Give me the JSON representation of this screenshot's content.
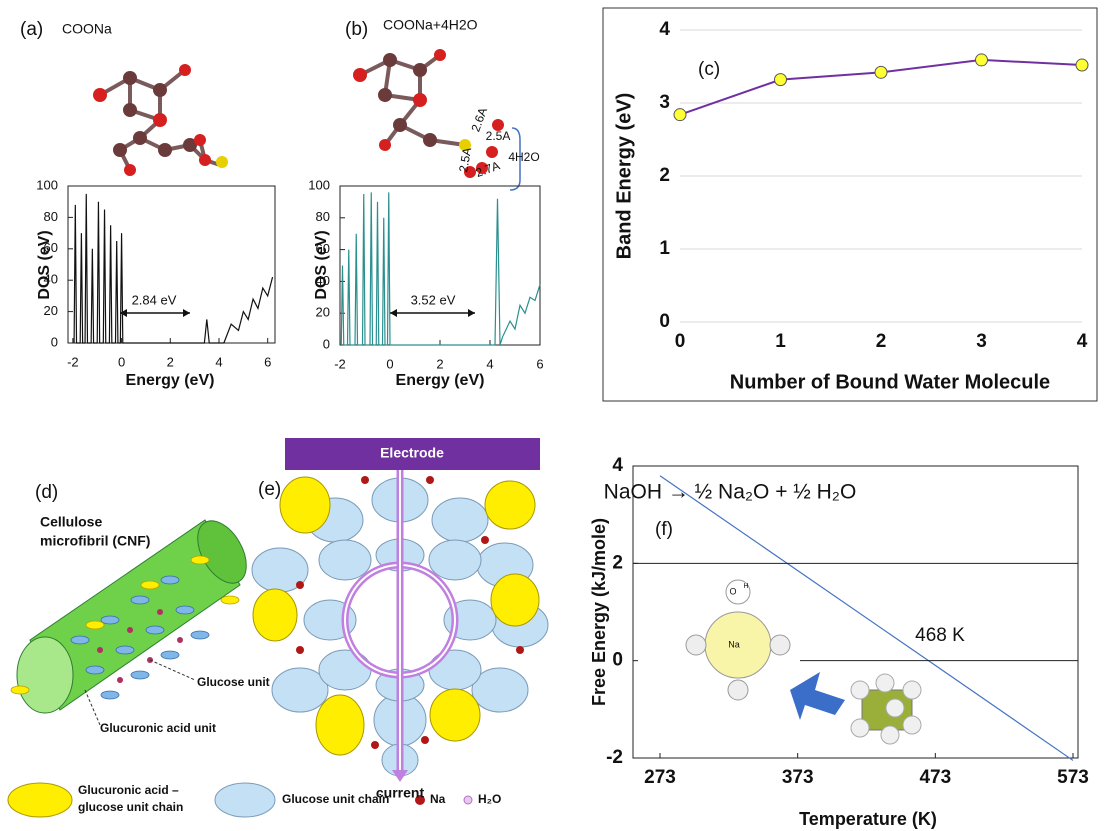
{
  "chart_data": [
    {
      "type": "line",
      "panel": "(a)",
      "title": "COONa",
      "x_label": "Energy (eV)",
      "y_label": "DOS (eV)",
      "xlim": [
        -2.2,
        6.3
      ],
      "ylim": [
        0,
        100
      ],
      "xticks": [
        -2,
        0,
        2,
        4,
        6
      ],
      "yticks": [
        0,
        20,
        40,
        60,
        80,
        100
      ],
      "annotations": [
        "2.84 eV"
      ],
      "series": [
        {
          "color": "#111111",
          "x": [
            -1.95,
            -1.9,
            -1.85,
            -1.7,
            -1.65,
            -1.6,
            -1.5,
            -1.45,
            -1.4,
            -1.25,
            -1.2,
            -1.15,
            -1.0,
            -0.95,
            -0.9,
            -0.75,
            -0.7,
            -0.65,
            -0.5,
            -0.45,
            -0.4,
            -0.25,
            -0.2,
            -0.15,
            -0.05,
            0,
            0.05,
            3.4,
            3.5,
            3.6,
            4.2,
            4.5,
            4.8,
            5.0,
            5.2,
            5.4,
            5.6,
            5.8,
            6.0,
            6.2
          ],
          "values": [
            0,
            88,
            0,
            0,
            70,
            0,
            0,
            95,
            0,
            0,
            60,
            0,
            0,
            90,
            0,
            0,
            85,
            0,
            0,
            75,
            0,
            0,
            65,
            0,
            0,
            70,
            0,
            0,
            15,
            0,
            0,
            12,
            8,
            20,
            15,
            28,
            22,
            35,
            30,
            42
          ]
        }
      ]
    },
    {
      "type": "line",
      "panel": "(b)",
      "title": "COONa+4H2O",
      "x_label": "Energy (eV)",
      "y_label": "DOS (eV)",
      "xlim": [
        -2,
        6
      ],
      "ylim": [
        0,
        100
      ],
      "xticks": [
        -2,
        0,
        2,
        4,
        6
      ],
      "yticks": [
        0,
        20,
        40,
        60,
        80,
        100
      ],
      "annotations": [
        "3.52 eV",
        "2.6A",
        "2.5A",
        "2.5A",
        "2.7A",
        "4H2O"
      ],
      "series": [
        {
          "color": "#2a8f8f",
          "x": [
            -1.95,
            -1.9,
            -1.85,
            -1.7,
            -1.65,
            -1.6,
            -1.4,
            -1.35,
            -1.3,
            -1.1,
            -1.05,
            -1.0,
            -0.8,
            -0.75,
            -0.7,
            -0.55,
            -0.5,
            -0.45,
            -0.3,
            -0.25,
            -0.2,
            -0.1,
            -0.05,
            0,
            4.2,
            4.3,
            4.4,
            4.5,
            4.8,
            5.0,
            5.2,
            5.4,
            5.6,
            5.8,
            6.0
          ],
          "values": [
            0,
            50,
            0,
            0,
            60,
            0,
            0,
            70,
            0,
            0,
            95,
            0,
            0,
            96,
            0,
            0,
            90,
            0,
            0,
            80,
            0,
            0,
            96,
            0,
            0,
            92,
            0,
            5,
            15,
            10,
            25,
            20,
            30,
            28,
            38
          ]
        }
      ]
    },
    {
      "type": "line",
      "panel": "(c)",
      "x_label": "Number of Bound Water Molecule",
      "y_label": "Band Energy (eV)",
      "xlim": [
        0,
        4
      ],
      "ylim": [
        0,
        4
      ],
      "xticks": [
        0,
        1,
        2,
        3,
        4
      ],
      "yticks": [
        0,
        1,
        2,
        3,
        4
      ],
      "grid": true,
      "series": [
        {
          "color": "#7030a0",
          "marker_color": "#ffff33",
          "x": [
            0,
            1,
            2,
            3,
            4
          ],
          "values": [
            2.84,
            3.32,
            3.42,
            3.59,
            3.52
          ]
        }
      ]
    },
    {
      "type": "line",
      "panel": "(f)",
      "x_label": "Temperature (K)",
      "y_label": "Free Energy (kJ/mole)",
      "xlim": [
        273,
        573
      ],
      "ylim": [
        -2,
        4
      ],
      "xticks": [
        273,
        373,
        473,
        573
      ],
      "yticks": [
        -2,
        0,
        2,
        4
      ],
      "annotations": [
        "NaOH → ½ Na₂O +  ½ H₂O",
        "468 K",
        "O",
        "H",
        "Na"
      ],
      "series": [
        {
          "color": "#4472c4",
          "x": [
            273,
            468,
            573
          ],
          "values": [
            3.8,
            0,
            -2.05
          ]
        }
      ]
    }
  ],
  "diagrams": {
    "d": {
      "panel": "(d)",
      "title": [
        "Cellulose",
        "microfibril (CNF)"
      ],
      "labels": [
        "Glucose unit",
        "Glucuronic acid unit"
      ]
    },
    "e": {
      "panel": "(e)",
      "electrode": "Electrode",
      "current": "current"
    },
    "legend": [
      [
        "Glucuronic acid –",
        "glucose unit chain"
      ],
      "Glucose unit chain",
      "Na",
      "H₂O"
    ]
  }
}
